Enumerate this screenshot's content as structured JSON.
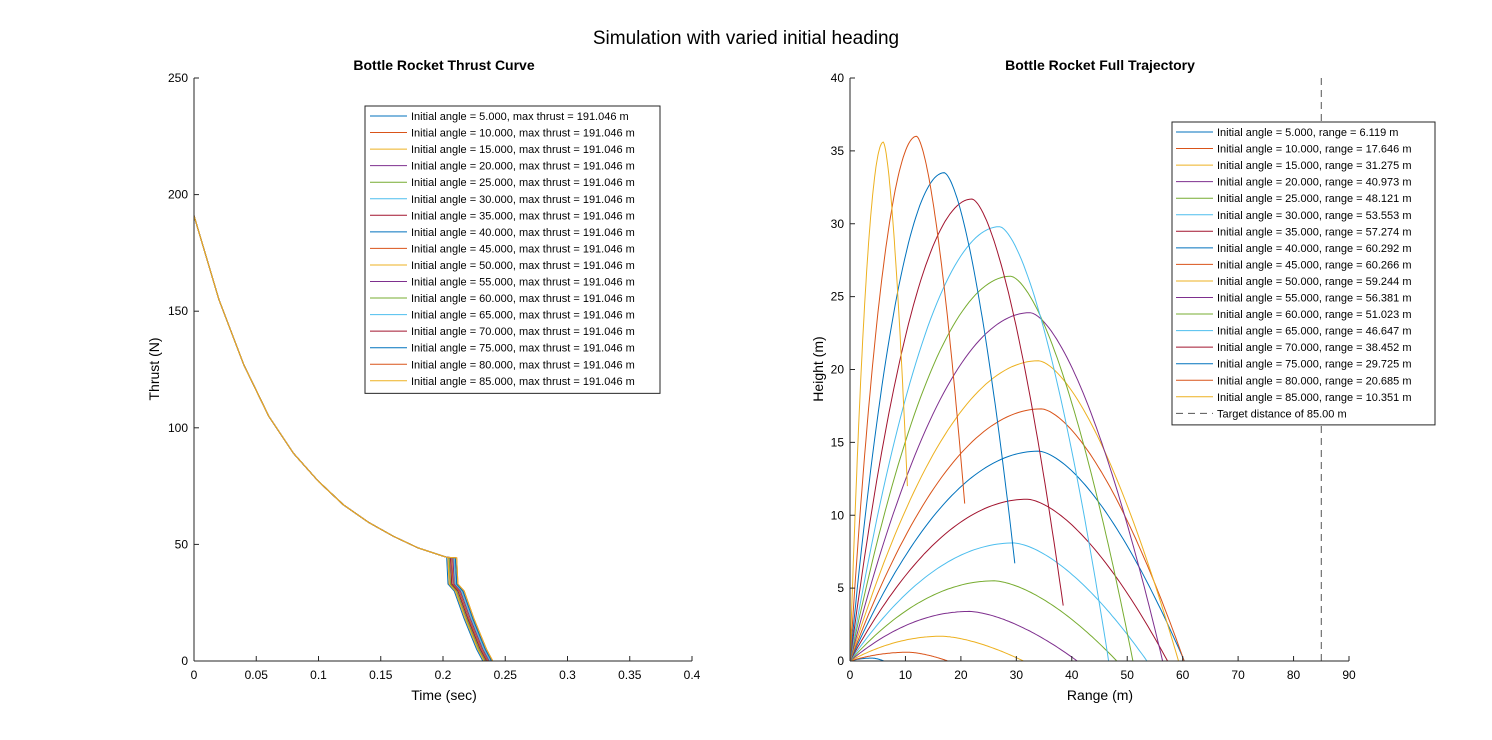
{
  "suptitle": "Simulation with varied initial heading",
  "colors": [
    "#0072BD",
    "#D95319",
    "#EDB120",
    "#7E2F8E",
    "#77AC30",
    "#4DBEEE",
    "#A2142F"
  ],
  "chart_data": [
    {
      "type": "line",
      "title": "Bottle Rocket Thrust Curve",
      "xlabel": "Time (sec)",
      "ylabel": "Thrust (N)",
      "xlim": [
        0,
        0.4
      ],
      "ylim": [
        0,
        250
      ],
      "xticks": [
        "0",
        "0.05",
        "0.1",
        "0.15",
        "0.2",
        "0.25",
        "0.3",
        "0.35",
        "0.4"
      ],
      "yticks": [
        "0",
        "50",
        "100",
        "150",
        "200",
        "250"
      ],
      "grid": false,
      "legend_position": "top-right",
      "water_phase": {
        "t": [
          0,
          0.02,
          0.04,
          0.06,
          0.08,
          0.1,
          0.12,
          0.14,
          0.16,
          0.18,
          0.2,
          0.203
        ],
        "thrust": [
          191.0,
          155.0,
          127.0,
          105.0,
          89.0,
          77.0,
          67.0,
          59.5,
          53.5,
          48.5,
          45.0,
          44.5
        ]
      },
      "burnout_t": [
        0.203,
        0.204,
        0.204,
        0.205,
        0.205,
        0.206,
        0.206,
        0.207,
        0.207,
        0.208,
        0.208,
        0.209,
        0.209,
        0.21,
        0.21,
        0.211,
        0.211
      ],
      "burnout_end_t": [
        0.232,
        0.233,
        0.233,
        0.234,
        0.234,
        0.235,
        0.235,
        0.236,
        0.236,
        0.237,
        0.237,
        0.238,
        0.238,
        0.239,
        0.239,
        0.24,
        0.24
      ],
      "series": [
        {
          "name": "Initial angle = 5.000, max thrust = 191.046 m"
        },
        {
          "name": "Initial angle = 10.000, max thrust = 191.046 m"
        },
        {
          "name": "Initial angle = 15.000, max thrust = 191.046 m"
        },
        {
          "name": "Initial angle = 20.000, max thrust = 191.046 m"
        },
        {
          "name": "Initial angle = 25.000, max thrust = 191.046 m"
        },
        {
          "name": "Initial angle = 30.000, max thrust = 191.046 m"
        },
        {
          "name": "Initial angle = 35.000, max thrust = 191.046 m"
        },
        {
          "name": "Initial angle = 40.000, max thrust = 191.046 m"
        },
        {
          "name": "Initial angle = 45.000, max thrust = 191.046 m"
        },
        {
          "name": "Initial angle = 50.000, max thrust = 191.046 m"
        },
        {
          "name": "Initial angle = 55.000, max thrust = 191.046 m"
        },
        {
          "name": "Initial angle = 60.000, max thrust = 191.046 m"
        },
        {
          "name": "Initial angle = 65.000, max thrust = 191.046 m"
        },
        {
          "name": "Initial angle = 70.000, max thrust = 191.046 m"
        },
        {
          "name": "Initial angle = 75.000, max thrust = 191.046 m"
        },
        {
          "name": "Initial angle = 80.000, max thrust = 191.046 m"
        },
        {
          "name": "Initial angle = 85.000, max thrust = 191.046 m"
        }
      ]
    },
    {
      "type": "line",
      "title": "Bottle Rocket Full Trajectory",
      "xlabel": "Range (m)",
      "ylabel": "Height (m)",
      "xlim": [
        0,
        90
      ],
      "ylim": [
        0,
        40
      ],
      "xticks": [
        "0",
        "10",
        "20",
        "30",
        "40",
        "50",
        "60",
        "70",
        "80",
        "90"
      ],
      "yticks": [
        "0",
        "5",
        "10",
        "15",
        "20",
        "25",
        "30",
        "35",
        "40"
      ],
      "grid": false,
      "legend_position": "top-right",
      "series": [
        {
          "name": "Initial angle = 5.000, range = 6.119 m",
          "angle": 5,
          "range": 6.119,
          "apex_x": 4.0,
          "apex_y": 0.2,
          "end_y": 0
        },
        {
          "name": "Initial angle = 10.000, range = 17.646 m",
          "angle": 10,
          "range": 17.646,
          "apex_x": 10.5,
          "apex_y": 0.6,
          "end_y": 0
        },
        {
          "name": "Initial angle = 15.000, range = 31.275 m",
          "angle": 15,
          "range": 31.275,
          "apex_x": 16.5,
          "apex_y": 1.7,
          "end_y": 0
        },
        {
          "name": "Initial angle = 20.000, range = 40.973 m",
          "angle": 20,
          "range": 40.973,
          "apex_x": 21.5,
          "apex_y": 3.4,
          "end_y": 0
        },
        {
          "name": "Initial angle = 25.000, range = 48.121 m",
          "angle": 25,
          "range": 48.121,
          "apex_x": 26.0,
          "apex_y": 5.5,
          "end_y": 0
        },
        {
          "name": "Initial angle = 30.000, range = 53.553 m",
          "angle": 30,
          "range": 53.553,
          "apex_x": 29.5,
          "apex_y": 8.1,
          "end_y": 0
        },
        {
          "name": "Initial angle = 35.000, range = 57.274 m",
          "angle": 35,
          "range": 57.274,
          "apex_x": 32.0,
          "apex_y": 11.1,
          "end_y": 0
        },
        {
          "name": "Initial angle = 40.000, range = 60.292 m",
          "angle": 40,
          "range": 60.292,
          "apex_x": 34.0,
          "apex_y": 14.4,
          "end_y": 0
        },
        {
          "name": "Initial angle = 45.000, range = 60.266 m",
          "angle": 45,
          "range": 60.266,
          "apex_x": 34.5,
          "apex_y": 17.3,
          "end_y": 0
        },
        {
          "name": "Initial angle = 50.000, range = 59.244 m",
          "angle": 50,
          "range": 59.244,
          "apex_x": 34.0,
          "apex_y": 20.6,
          "end_y": 0
        },
        {
          "name": "Initial angle = 55.000, range = 56.381 m",
          "angle": 55,
          "range": 56.381,
          "apex_x": 32.5,
          "apex_y": 23.9,
          "end_y": 0
        },
        {
          "name": "Initial angle = 60.000, range = 51.023 m",
          "angle": 60,
          "range": 51.023,
          "apex_x": 29.0,
          "apex_y": 26.4,
          "end_y": 0
        },
        {
          "name": "Initial angle = 65.000, range = 46.647 m",
          "angle": 65,
          "range": 46.647,
          "apex_x": 27.0,
          "apex_y": 29.8,
          "end_y": 0
        },
        {
          "name": "Initial angle = 70.000, range = 38.452 m",
          "angle": 70,
          "range": 38.452,
          "apex_x": 22.0,
          "apex_y": 31.7,
          "end_y": 3.8
        },
        {
          "name": "Initial angle = 75.000, range = 29.725 m",
          "angle": 75,
          "range": 29.725,
          "apex_x": 17.0,
          "apex_y": 33.5,
          "end_y": 6.7
        },
        {
          "name": "Initial angle = 80.000, range = 20.685 m",
          "angle": 80,
          "range": 20.685,
          "apex_x": 12.0,
          "apex_y": 36.0,
          "end_y": 10.8
        },
        {
          "name": "Initial angle = 85.000, range = 10.351 m",
          "angle": 85,
          "range": 10.351,
          "apex_x": 6.0,
          "apex_y": 35.6,
          "end_y": 12.0
        }
      ],
      "target": {
        "name": "Target distance of 85.00 m",
        "x": 85,
        "color": "#555555"
      }
    }
  ]
}
